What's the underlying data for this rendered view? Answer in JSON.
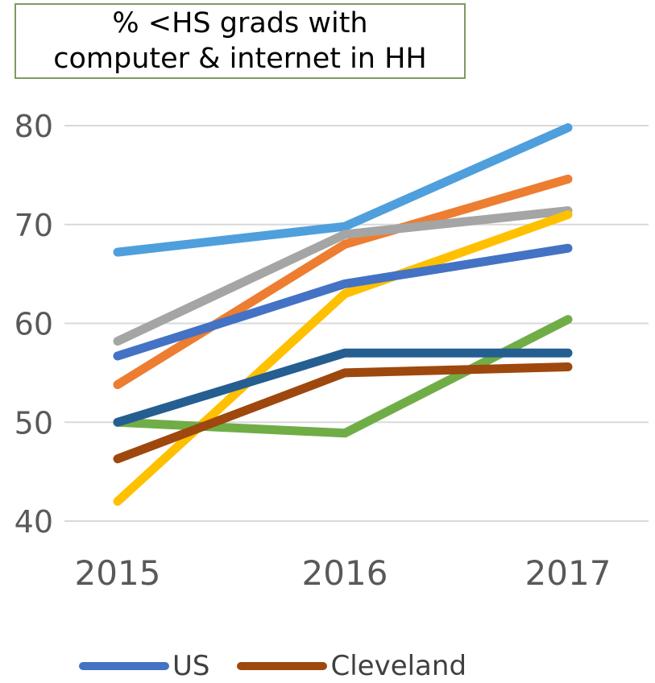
{
  "chart_data": {
    "type": "line",
    "title_lines": [
      "% <HS grads with",
      "computer & internet in HH"
    ],
    "xlabel": "",
    "ylabel": "",
    "categories": [
      "2015",
      "2016",
      "2017"
    ],
    "ylim": [
      40,
      80
    ],
    "yticks": [
      40,
      50,
      60,
      70,
      80
    ],
    "grid": true,
    "legend_position": "bottom-left",
    "series": [
      {
        "name": "",
        "color": "#4e9fdc",
        "values": [
          67.2,
          69.8,
          79.8
        ]
      },
      {
        "name": "",
        "color": "#ed7d31",
        "values": [
          53.8,
          68.0,
          74.6
        ]
      },
      {
        "name": "",
        "color": "#a5a5a5",
        "values": [
          58.2,
          69.0,
          71.4
        ]
      },
      {
        "name": "",
        "color": "#ffc000",
        "values": [
          42.0,
          63.0,
          71.0
        ]
      },
      {
        "name": "",
        "color": "#70ad47",
        "values": [
          50.0,
          48.9,
          60.4
        ]
      },
      {
        "name": "",
        "color": "#255e91",
        "values": [
          50.0,
          57.0,
          57.0
        ]
      },
      {
        "name": "US",
        "color": "#4472c4",
        "values": [
          56.7,
          64.0,
          67.6
        ]
      },
      {
        "name": "Cleveland",
        "color": "#9e480e",
        "values": [
          46.3,
          55.0,
          55.6
        ]
      }
    ]
  }
}
